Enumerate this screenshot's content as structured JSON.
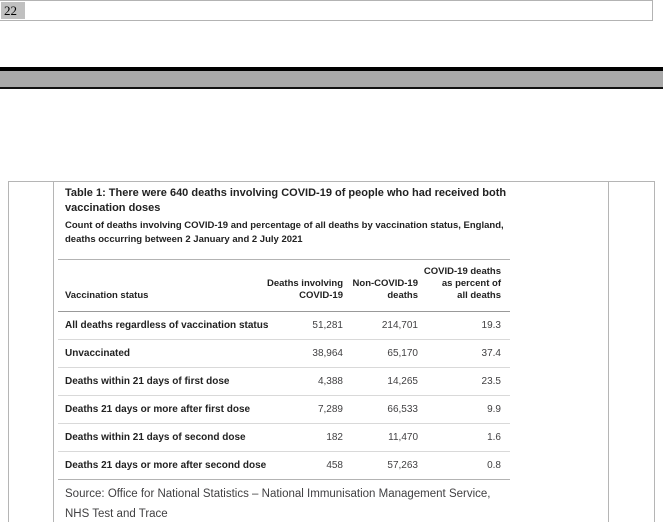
{
  "header": {
    "page_number": "22"
  },
  "figure": {
    "title": "Table 1: There were 640 deaths involving COVID-19 of people who had received both\nvaccination doses",
    "subtitle": "Count of deaths involving COVID-19 and percentage of all deaths by vaccination status, England,\ndeaths occurring between 2 January and 2 July 2021",
    "table": {
      "col_label": "Vaccination status",
      "col_deaths_covid": "Deaths involving\nCOVID-19",
      "col_non_covid": "Non-COVID-19\ndeaths",
      "col_percent": "COVID-19 deaths\nas percent of\nall deaths",
      "rows": [
        {
          "label": "All deaths regardless of vaccination status",
          "deaths_covid": "51,281",
          "non_covid": "214,701",
          "percent": "19.3"
        },
        {
          "label": "Unvaccinated",
          "deaths_covid": "38,964",
          "non_covid": "65,170",
          "percent": "37.4"
        },
        {
          "label": "Deaths within 21 days of first dose",
          "deaths_covid": "4,388",
          "non_covid": "14,265",
          "percent": "23.5"
        },
        {
          "label": "Deaths 21 days or more after first dose",
          "deaths_covid": "7,289",
          "non_covid": "66,533",
          "percent": "9.9"
        },
        {
          "label": "Deaths within 21 days of second dose",
          "deaths_covid": "182",
          "non_covid": "11,470",
          "percent": "1.6"
        },
        {
          "label": "Deaths 21 days or more after second dose",
          "deaths_covid": "458",
          "non_covid": "57,263",
          "percent": "0.8"
        }
      ]
    },
    "source": "Source: Office for National Statistics – National Immunisation Management Service,\nNHS Test and Trace"
  },
  "colors": {
    "banner_black": "#000000",
    "banner_gray": "#a9a9a9",
    "field_shading": "#c0c0c0",
    "frame_border": "#b5b5b5",
    "header_rule": "#999999",
    "row_border": "#d9d9d9",
    "text_dark": "#222222",
    "text_gray": "#414042"
  }
}
